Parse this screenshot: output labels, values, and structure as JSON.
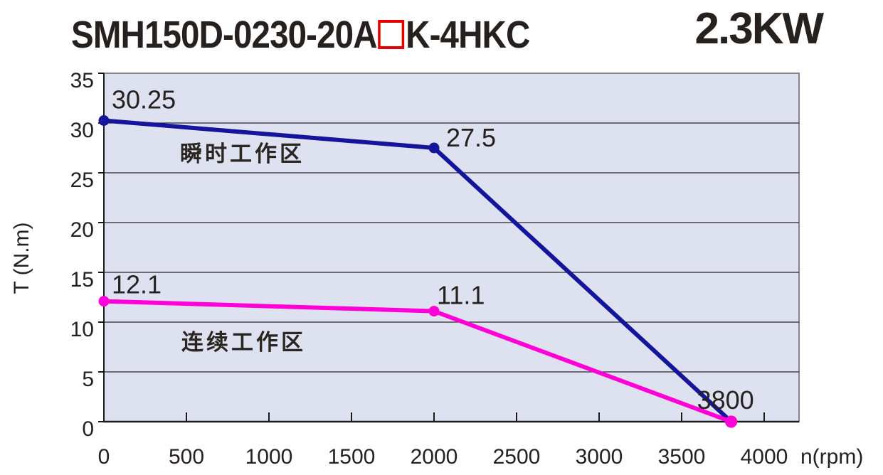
{
  "header": {
    "model_prefix": "SMH150D-0230-20A",
    "model_suffix": "K-4HKC",
    "power": "2.3KW",
    "placeholder_box_color": "#e60000"
  },
  "chart_data": {
    "type": "line",
    "title": "SMH150D-0230-20A□K-4HKC",
    "power_label": "2.3KW",
    "xlabel": "n(rpm)",
    "ylabel": "T (N.m)",
    "xlim": [
      0,
      4200
    ],
    "ylim": [
      0,
      35
    ],
    "x_ticks": [
      0,
      500,
      1000,
      1500,
      2000,
      2500,
      3000,
      3500,
      4000
    ],
    "y_ticks": [
      0,
      5,
      10,
      15,
      20,
      25,
      30,
      35
    ],
    "grid": "horizontal-only",
    "legend": "none",
    "colors": {
      "plot_bg": "#dee1f0",
      "grid": "#2a2a2a",
      "axis": "#1a1a1a",
      "border": "#85858f",
      "text": "#26211f"
    },
    "series": [
      {
        "name": "瞬时工作区",
        "color": "#15159b",
        "points": [
          {
            "x": 0,
            "y": 30.25,
            "label": "30.25"
          },
          {
            "x": 2000,
            "y": 27.5,
            "label": "27.5"
          },
          {
            "x": 3800,
            "y": 0,
            "label": ""
          }
        ]
      },
      {
        "name": "连续工作区",
        "color": "#ff00d8",
        "points": [
          {
            "x": 0,
            "y": 12.1,
            "label": "12.1"
          },
          {
            "x": 2000,
            "y": 11.1,
            "label": "11.1"
          },
          {
            "x": 3800,
            "y": 0,
            "label": "3800"
          }
        ]
      }
    ]
  }
}
